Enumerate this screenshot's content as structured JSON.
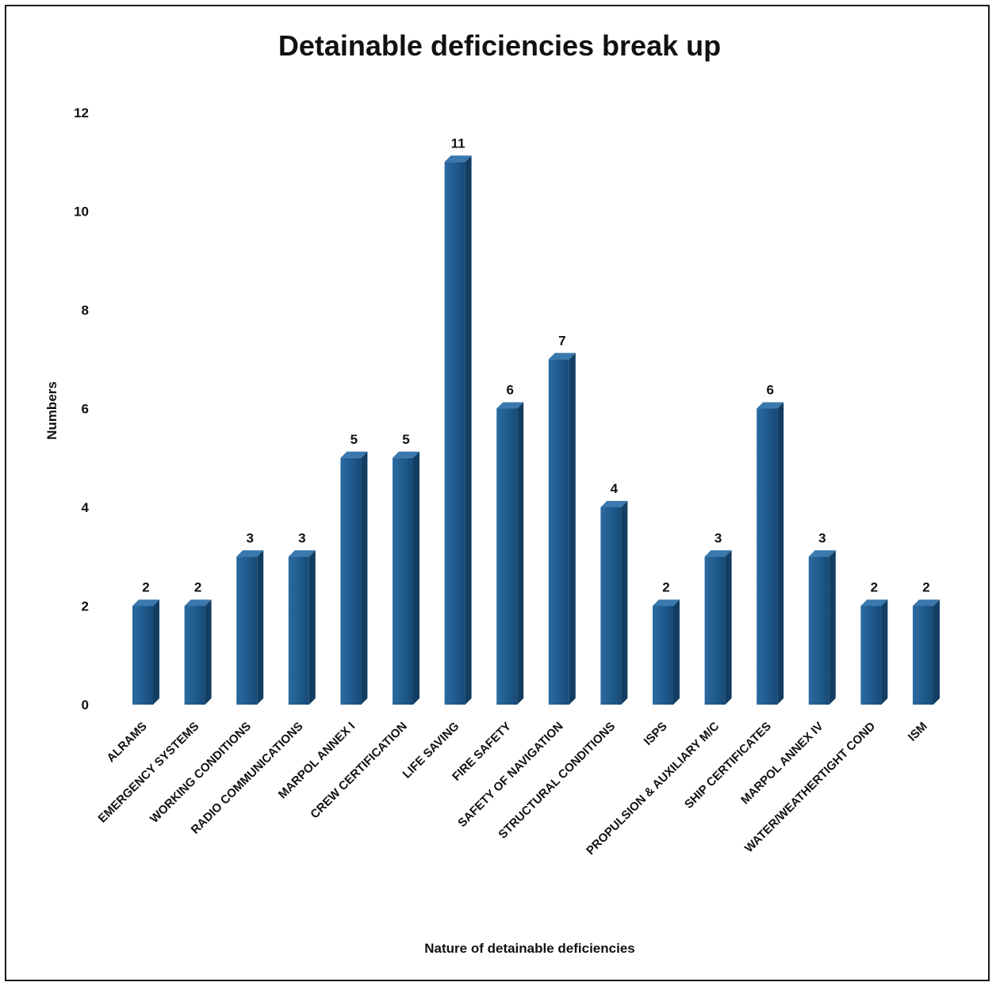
{
  "chart_data": {
    "type": "bar",
    "title": "Detainable deficiencies break up",
    "xlabel": "Nature of detainable deficiencies",
    "ylabel": "Numbers",
    "ylim": [
      0,
      12
    ],
    "yticks": [
      0,
      2,
      4,
      6,
      8,
      10,
      12
    ],
    "grid": false,
    "legend": "none",
    "bar_color": "#1f5a8c",
    "categories": [
      "ALRAMS",
      "EMERGENCY SYSTEMS",
      "WORKING CONDITIONS",
      "RADIO COMMUNICATIONS",
      "MARPOL ANNEX I",
      "CREW CERTIFICATION",
      "LIFE SAVING",
      "FIRE SAFETY",
      "SAFETY OF NAVIGATION",
      "STRUCTURAL CONDITIONS",
      "ISPS",
      "PROPULSION & AUXILIARY M/C",
      "SHIP CERTIFICATES",
      "MARPOL ANNEX IV",
      "WATER/WEATHERTIGHT COND",
      "ISM"
    ],
    "values": [
      2,
      2,
      3,
      3,
      5,
      5,
      11,
      6,
      7,
      4,
      2,
      3,
      6,
      3,
      2,
      2
    ]
  }
}
